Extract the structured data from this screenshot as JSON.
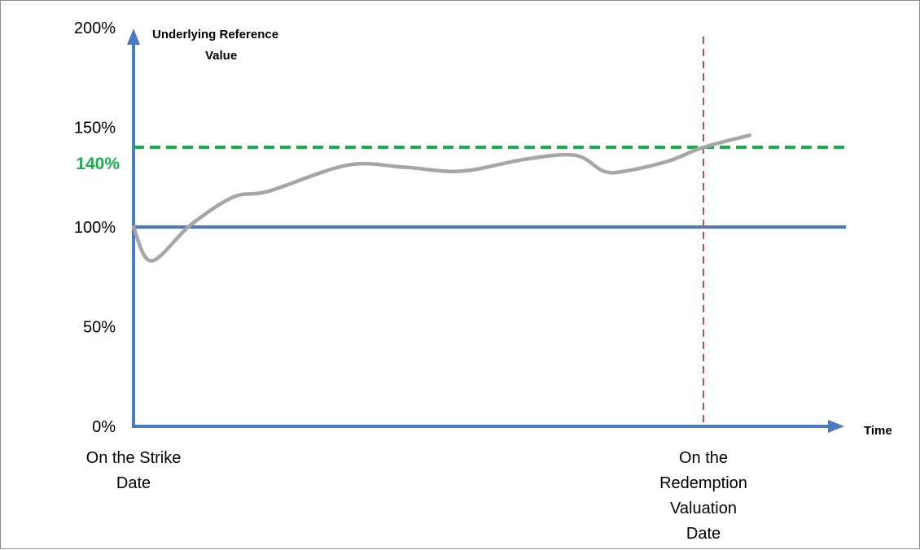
{
  "chart_data": {
    "type": "line",
    "ylabel": "Underlying Reference Value",
    "xlabel": "Time",
    "ylim": [
      0,
      200
    ],
    "xlim": [
      0,
      100
    ],
    "y_ticks": [
      "0%",
      "50%",
      "100%",
      "150%",
      "200%"
    ],
    "y_tick_values": [
      0,
      50,
      100,
      150,
      200
    ],
    "highlight_tick": {
      "label": "140%",
      "value": 140,
      "color": "#16b14b"
    },
    "x_labels": [
      {
        "lines": [
          "On the Strike",
          "Date"
        ],
        "x": 0
      },
      {
        "lines": [
          "On the",
          "Redemption",
          "Valuation",
          "Date"
        ],
        "x": 80
      }
    ],
    "series": [
      {
        "color": "#a6a6a6",
        "x": [
          0,
          2.5,
          8,
          14,
          19,
          30,
          38,
          46,
          55,
          62,
          66,
          69,
          75,
          80,
          86.5
        ],
        "y": [
          100,
          83,
          101,
          115,
          118,
          131,
          130,
          128,
          134,
          136,
          128,
          128,
          133,
          140,
          146
        ]
      }
    ],
    "reference_lines": [
      {
        "orientation": "horizontal",
        "value": 100,
        "color": "#4a7bbf",
        "style": "solid"
      },
      {
        "orientation": "horizontal",
        "value": 140,
        "color": "#16b14b",
        "style": "dashed"
      },
      {
        "orientation": "vertical",
        "value": 80,
        "color": "#c0504d",
        "style": "dashed"
      }
    ],
    "grid": false,
    "legend": "none"
  }
}
